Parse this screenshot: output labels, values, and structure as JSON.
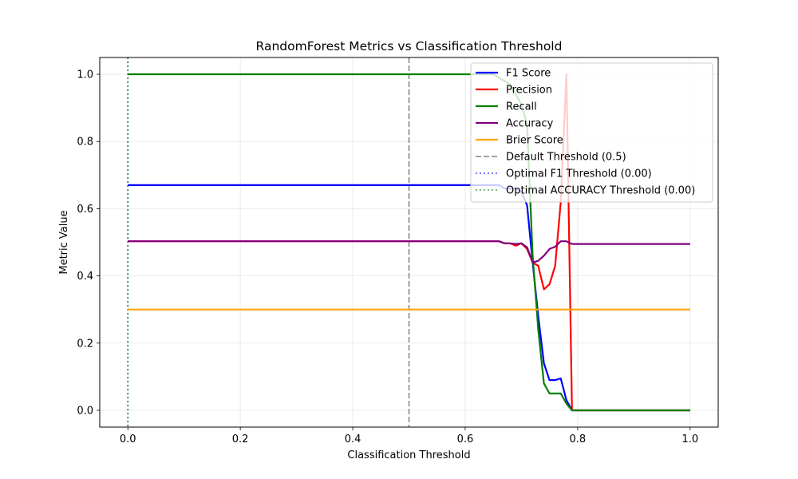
{
  "chart_data": {
    "type": "line",
    "title": "RandomForest Metrics vs Classification Threshold",
    "xlabel": "Classification Threshold",
    "ylabel": "Metric Value",
    "xlim": [
      -0.05,
      1.05
    ],
    "ylim": [
      -0.05,
      1.05
    ],
    "x_ticks": [
      0.0,
      0.2,
      0.4,
      0.6,
      0.8,
      1.0
    ],
    "x_tick_labels": [
      "0.0",
      "0.2",
      "0.4",
      "0.6",
      "0.8",
      "1.0"
    ],
    "y_ticks": [
      0.0,
      0.2,
      0.4,
      0.6,
      0.8,
      1.0
    ],
    "y_tick_labels": [
      "0.0",
      "0.2",
      "0.4",
      "0.6",
      "0.8",
      "1.0"
    ],
    "grid": true,
    "legend_position": "top-right",
    "series": [
      {
        "name": "F1 Score",
        "color": "#0000ff",
        "style": "solid",
        "x": [
          0.0,
          0.65,
          0.66,
          0.67,
          0.68,
          0.69,
          0.7,
          0.71,
          0.72,
          0.73,
          0.74,
          0.75,
          0.76,
          0.77,
          0.78,
          0.79,
          1.0
        ],
        "y": [
          0.67,
          0.67,
          0.67,
          0.66,
          0.66,
          0.66,
          0.65,
          0.61,
          0.44,
          0.28,
          0.14,
          0.09,
          0.09,
          0.095,
          0.03,
          0.0,
          0.0
        ]
      },
      {
        "name": "Precision",
        "color": "#ff0000",
        "style": "solid",
        "x": [
          0.0,
          0.65,
          0.66,
          0.67,
          0.68,
          0.69,
          0.7,
          0.71,
          0.72,
          0.73,
          0.74,
          0.75,
          0.76,
          0.77,
          0.78,
          0.79,
          1.0
        ],
        "y": [
          0.503,
          0.503,
          0.503,
          0.497,
          0.497,
          0.49,
          0.497,
          0.48,
          0.44,
          0.43,
          0.36,
          0.375,
          0.43,
          0.62,
          1.0,
          0.0,
          0.0
        ]
      },
      {
        "name": "Recall",
        "color": "#008000",
        "style": "solid",
        "x": [
          0.0,
          0.65,
          0.66,
          0.67,
          0.68,
          0.69,
          0.7,
          0.71,
          0.72,
          0.73,
          0.74,
          0.75,
          0.76,
          0.77,
          0.78,
          0.79,
          1.0
        ],
        "y": [
          1.0,
          1.0,
          0.99,
          0.98,
          0.97,
          0.94,
          0.91,
          0.85,
          0.46,
          0.24,
          0.08,
          0.05,
          0.05,
          0.05,
          0.02,
          0.0,
          0.0
        ]
      },
      {
        "name": "Accuracy",
        "color": "#800080",
        "style": "solid",
        "x": [
          0.0,
          0.65,
          0.66,
          0.67,
          0.68,
          0.69,
          0.7,
          0.71,
          0.72,
          0.73,
          0.74,
          0.75,
          0.76,
          0.77,
          0.78,
          0.79,
          1.0
        ],
        "y": [
          0.503,
          0.503,
          0.503,
          0.497,
          0.497,
          0.495,
          0.497,
          0.485,
          0.44,
          0.445,
          0.46,
          0.48,
          0.487,
          0.503,
          0.503,
          0.495,
          0.495
        ]
      },
      {
        "name": "Brier Score",
        "color": "#ffa500",
        "style": "solid",
        "x": [
          0.0,
          1.0
        ],
        "y": [
          0.3,
          0.3
        ]
      }
    ],
    "reference_lines": [
      {
        "name": "Default Threshold (0.5)",
        "x": 0.5,
        "color": "#808080",
        "style": "dashed"
      },
      {
        "name": "Optimal F1 Threshold (0.00)",
        "x": 0.0,
        "color": "#0000ff",
        "style": "dotted"
      },
      {
        "name": "Optimal ACCURACY Threshold (0.00)",
        "x": 0.0,
        "color": "#008000",
        "style": "dotted"
      }
    ]
  }
}
